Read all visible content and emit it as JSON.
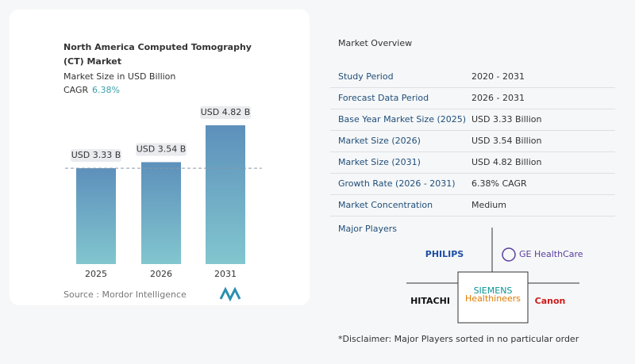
{
  "chart_data": {
    "type": "bar",
    "title": "North America Computed Tomography (CT) Market",
    "subtitle": "Market Size in USD Billion",
    "cagr_label": "CAGR",
    "cagr_value": "6.38%",
    "categories": [
      "2025",
      "2026",
      "2031"
    ],
    "values": [
      3.33,
      3.54,
      4.82
    ],
    "value_labels": [
      "USD 3.33 B",
      "USD 3.54 B",
      "USD 4.82 B"
    ],
    "color": "#5d90bb",
    "source": "Source :  Mordor Intelligence"
  },
  "market_overview": {
    "title": "Market Overview",
    "rows": [
      [
        "Study Period",
        "2020 - 2031"
      ],
      [
        "Forecast Data Period",
        "2026 - 2031"
      ],
      [
        "Base Year Market Size (2025)",
        "USD 3.33 Billion"
      ],
      [
        "Market Size (2026)",
        "USD 3.54 Billion"
      ],
      [
        "Market Size (2031)",
        "USD 4.82 Billion"
      ],
      [
        "Growth Rate (2026 - 2031)",
        "6.38% CAGR"
      ],
      [
        "Market Concentration",
        "Medium"
      ]
    ]
  },
  "major_players": {
    "title": "Major Players",
    "players": [
      "PHILIPS",
      "GE HealthCare",
      "HITACHI",
      "SIEMENS",
      "Healthineers",
      "Canon"
    ]
  },
  "disclaimer": "*Disclaimer: Major Players sorted in no particular order"
}
